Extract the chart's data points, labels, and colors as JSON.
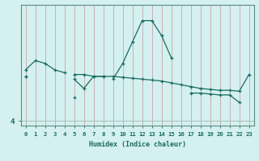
{
  "xlabel": "Humidex (Indice chaleur)",
  "bg_color": "#d4f0f0",
  "line_color": "#1a6b60",
  "grid_color_v": "#c8a0a0",
  "grid_color_h": "#a0b8b0",
  "x_values": [
    0,
    1,
    2,
    3,
    4,
    5,
    6,
    7,
    8,
    9,
    10,
    11,
    12,
    13,
    14,
    15,
    16,
    17,
    18,
    19,
    20,
    21,
    22,
    23
  ],
  "line_bell_y": [
    null,
    null,
    null,
    null,
    null,
    null,
    null,
    null,
    null,
    8.5,
    10.2,
    12.5,
    14.8,
    14.8,
    13.2,
    10.8,
    null,
    null,
    null,
    null,
    null,
    null,
    null,
    null
  ],
  "line_top_y": [
    9.5,
    10.5,
    10.2,
    9.5,
    9.2,
    null,
    null,
    null,
    null,
    null,
    null,
    null,
    null,
    null,
    null,
    null,
    null,
    null,
    null,
    null,
    null,
    null,
    null,
    null
  ],
  "line_main_y": [
    8.8,
    null,
    null,
    null,
    null,
    9.0,
    9.0,
    8.8,
    8.8,
    8.8,
    8.7,
    8.6,
    8.5,
    8.4,
    8.3,
    8.1,
    7.9,
    7.7,
    7.5,
    7.4,
    7.3,
    7.3,
    7.2,
    9.0
  ],
  "line_v_y": [
    8.8,
    null,
    null,
    null,
    null,
    8.5,
    7.5,
    8.8,
    8.8,
    null,
    null,
    null,
    null,
    null,
    null,
    null,
    null,
    null,
    null,
    null,
    null,
    null,
    null,
    null
  ],
  "line_low_y": [
    null,
    null,
    null,
    null,
    null,
    6.5,
    null,
    null,
    null,
    null,
    null,
    null,
    null,
    null,
    null,
    null,
    null,
    7.0,
    7.0,
    6.9,
    6.8,
    6.8,
    6.0,
    null
  ],
  "y_tick_vals": [
    4
  ],
  "ylim": [
    3.5,
    16.5
  ],
  "xlim": [
    -0.5,
    23.5
  ]
}
